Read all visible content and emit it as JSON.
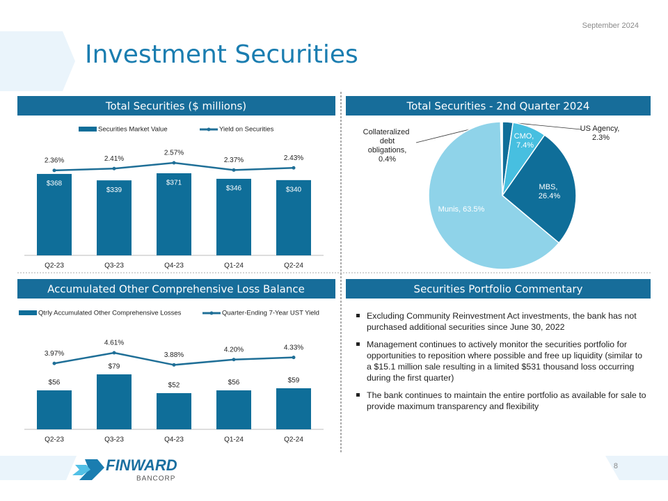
{
  "header": {
    "date": "September  2024",
    "title": "Investment Securities"
  },
  "chart_data": [
    {
      "type": "combo",
      "title": "Total Securities ($ millions)",
      "categories": [
        "Q2-23",
        "Q3-23",
        "Q4-23",
        "Q1-24",
        "Q2-24"
      ],
      "series": [
        {
          "name": "Securities Market Value",
          "type": "bar",
          "color": "#0f6e99",
          "values": [
            368,
            339,
            371,
            346,
            340
          ],
          "value_labels": [
            "$368",
            "$339",
            "$371",
            "$346",
            "$340"
          ]
        },
        {
          "name": "Yield on Securities",
          "type": "line",
          "axis": "y2",
          "color": "#1f6f97",
          "values": [
            2.36,
            2.41,
            2.57,
            2.37,
            2.43
          ],
          "value_labels": [
            "2.36%",
            "2.41%",
            "2.57%",
            "2.37%",
            "2.43%"
          ]
        }
      ]
    },
    {
      "type": "pie",
      "title": "Total Securities - 2nd Quarter 2024",
      "values": [
        2.3,
        7.4,
        26.4,
        63.5,
        0.4
      ],
      "value_labels": [
        "US Agency, 2.3%",
        "CMO, 7.4%",
        "MBS, 26.4%",
        "Munis, 63.5%",
        "Collateralized debt obligations, 0.4%"
      ],
      "colors": [
        "#0f6e99",
        "#47bfe0",
        "#0f6e99",
        "#8fd3e9",
        "#ffffff"
      ]
    },
    {
      "type": "combo",
      "title": "Accumulated Other Comprehensive Loss Balance",
      "categories": [
        "Q2-23",
        "Q3-23",
        "Q4-23",
        "Q1-24",
        "Q2-24"
      ],
      "series": [
        {
          "name": "Qtrly Accumulated Other Comprehensive Losses",
          "type": "bar",
          "color": "#0f6e99",
          "values": [
            56,
            79,
            52,
            56,
            59
          ],
          "value_labels": [
            "$56",
            "$79",
            "$52",
            "$56",
            "$59"
          ]
        },
        {
          "name": "Quarter-Ending 7-Year UST Yield",
          "type": "line",
          "axis": "y2",
          "color": "#1f6f97",
          "values": [
            3.97,
            4.61,
            3.88,
            4.2,
            4.33
          ],
          "value_labels": [
            "3.97%",
            "4.61%",
            "3.88%",
            "4.20%",
            "4.33%"
          ]
        }
      ]
    }
  ],
  "commentary": {
    "title": "Securities Portfolio Commentary",
    "bullets": [
      "Excluding Community Reinvestment Act investments, the bank has not purchased additional securities since June 30, 2022",
      "Management continues to actively monitor the securities portfolio for opportunities to reposition where possible and free up liquidity (similar to a $15.1 million sale resulting in a limited $531 thousand loss occurring during the first quarter)",
      "The bank continues to maintain the entire portfolio as available for sale to provide maximum transparency and flexibility"
    ]
  },
  "footer": {
    "logo_name": "FINWARD",
    "logo_sub": "BANCORP",
    "page_number": "8"
  }
}
